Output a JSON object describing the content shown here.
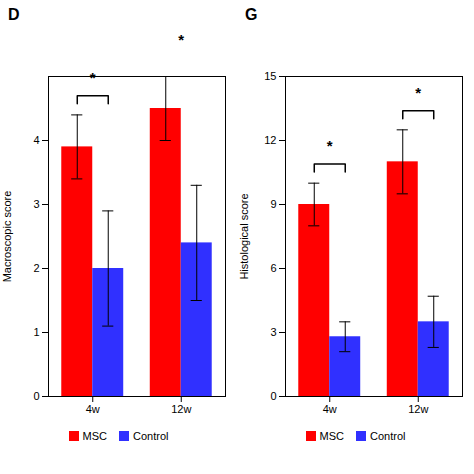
{
  "chart_data": [
    {
      "type": "bar",
      "title": "D",
      "ylabel": "Macroscopic score",
      "categories": [
        "4w",
        "12w"
      ],
      "series": [
        {
          "name": "MSC",
          "color": "#FF0000",
          "values": [
            3.9,
            4.5
          ],
          "errors": [
            0.5,
            0.5
          ]
        },
        {
          "name": "Control",
          "color": "#3030FF",
          "values": [
            2.0,
            2.4
          ],
          "errors": [
            0.9,
            0.9
          ]
        }
      ],
      "annotations": [
        "*",
        "*"
      ],
      "ylim": [
        0,
        5
      ],
      "yticks": [
        0,
        1,
        2,
        3,
        4
      ],
      "grid": false,
      "legend": "bottom"
    },
    {
      "type": "bar",
      "title": "G",
      "ylabel": "Histological score",
      "categories": [
        "4w",
        "12w"
      ],
      "series": [
        {
          "name": "MSC",
          "color": "#FF0000",
          "values": [
            9.0,
            11.0
          ],
          "errors": [
            1.0,
            1.5
          ]
        },
        {
          "name": "Control",
          "color": "#3030FF",
          "values": [
            2.8,
            3.5
          ],
          "errors": [
            0.7,
            1.2
          ]
        }
      ],
      "annotations": [
        "*",
        "*"
      ],
      "ylim": [
        0,
        15
      ],
      "yticks": [
        0,
        3,
        6,
        9,
        12,
        15
      ],
      "grid": false,
      "legend": "bottom"
    }
  ]
}
